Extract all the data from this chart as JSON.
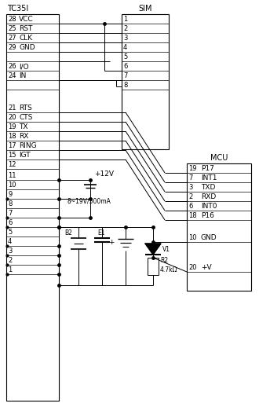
{
  "title_tc35i": "TC35I",
  "title_sim": "SIM",
  "title_mcu": "MCU",
  "bg_color": "#ffffff",
  "line_color": "#000000",
  "fs_title": 7,
  "fs_pin": 6,
  "fs_label": 6.5,
  "fs_small": 5.5
}
